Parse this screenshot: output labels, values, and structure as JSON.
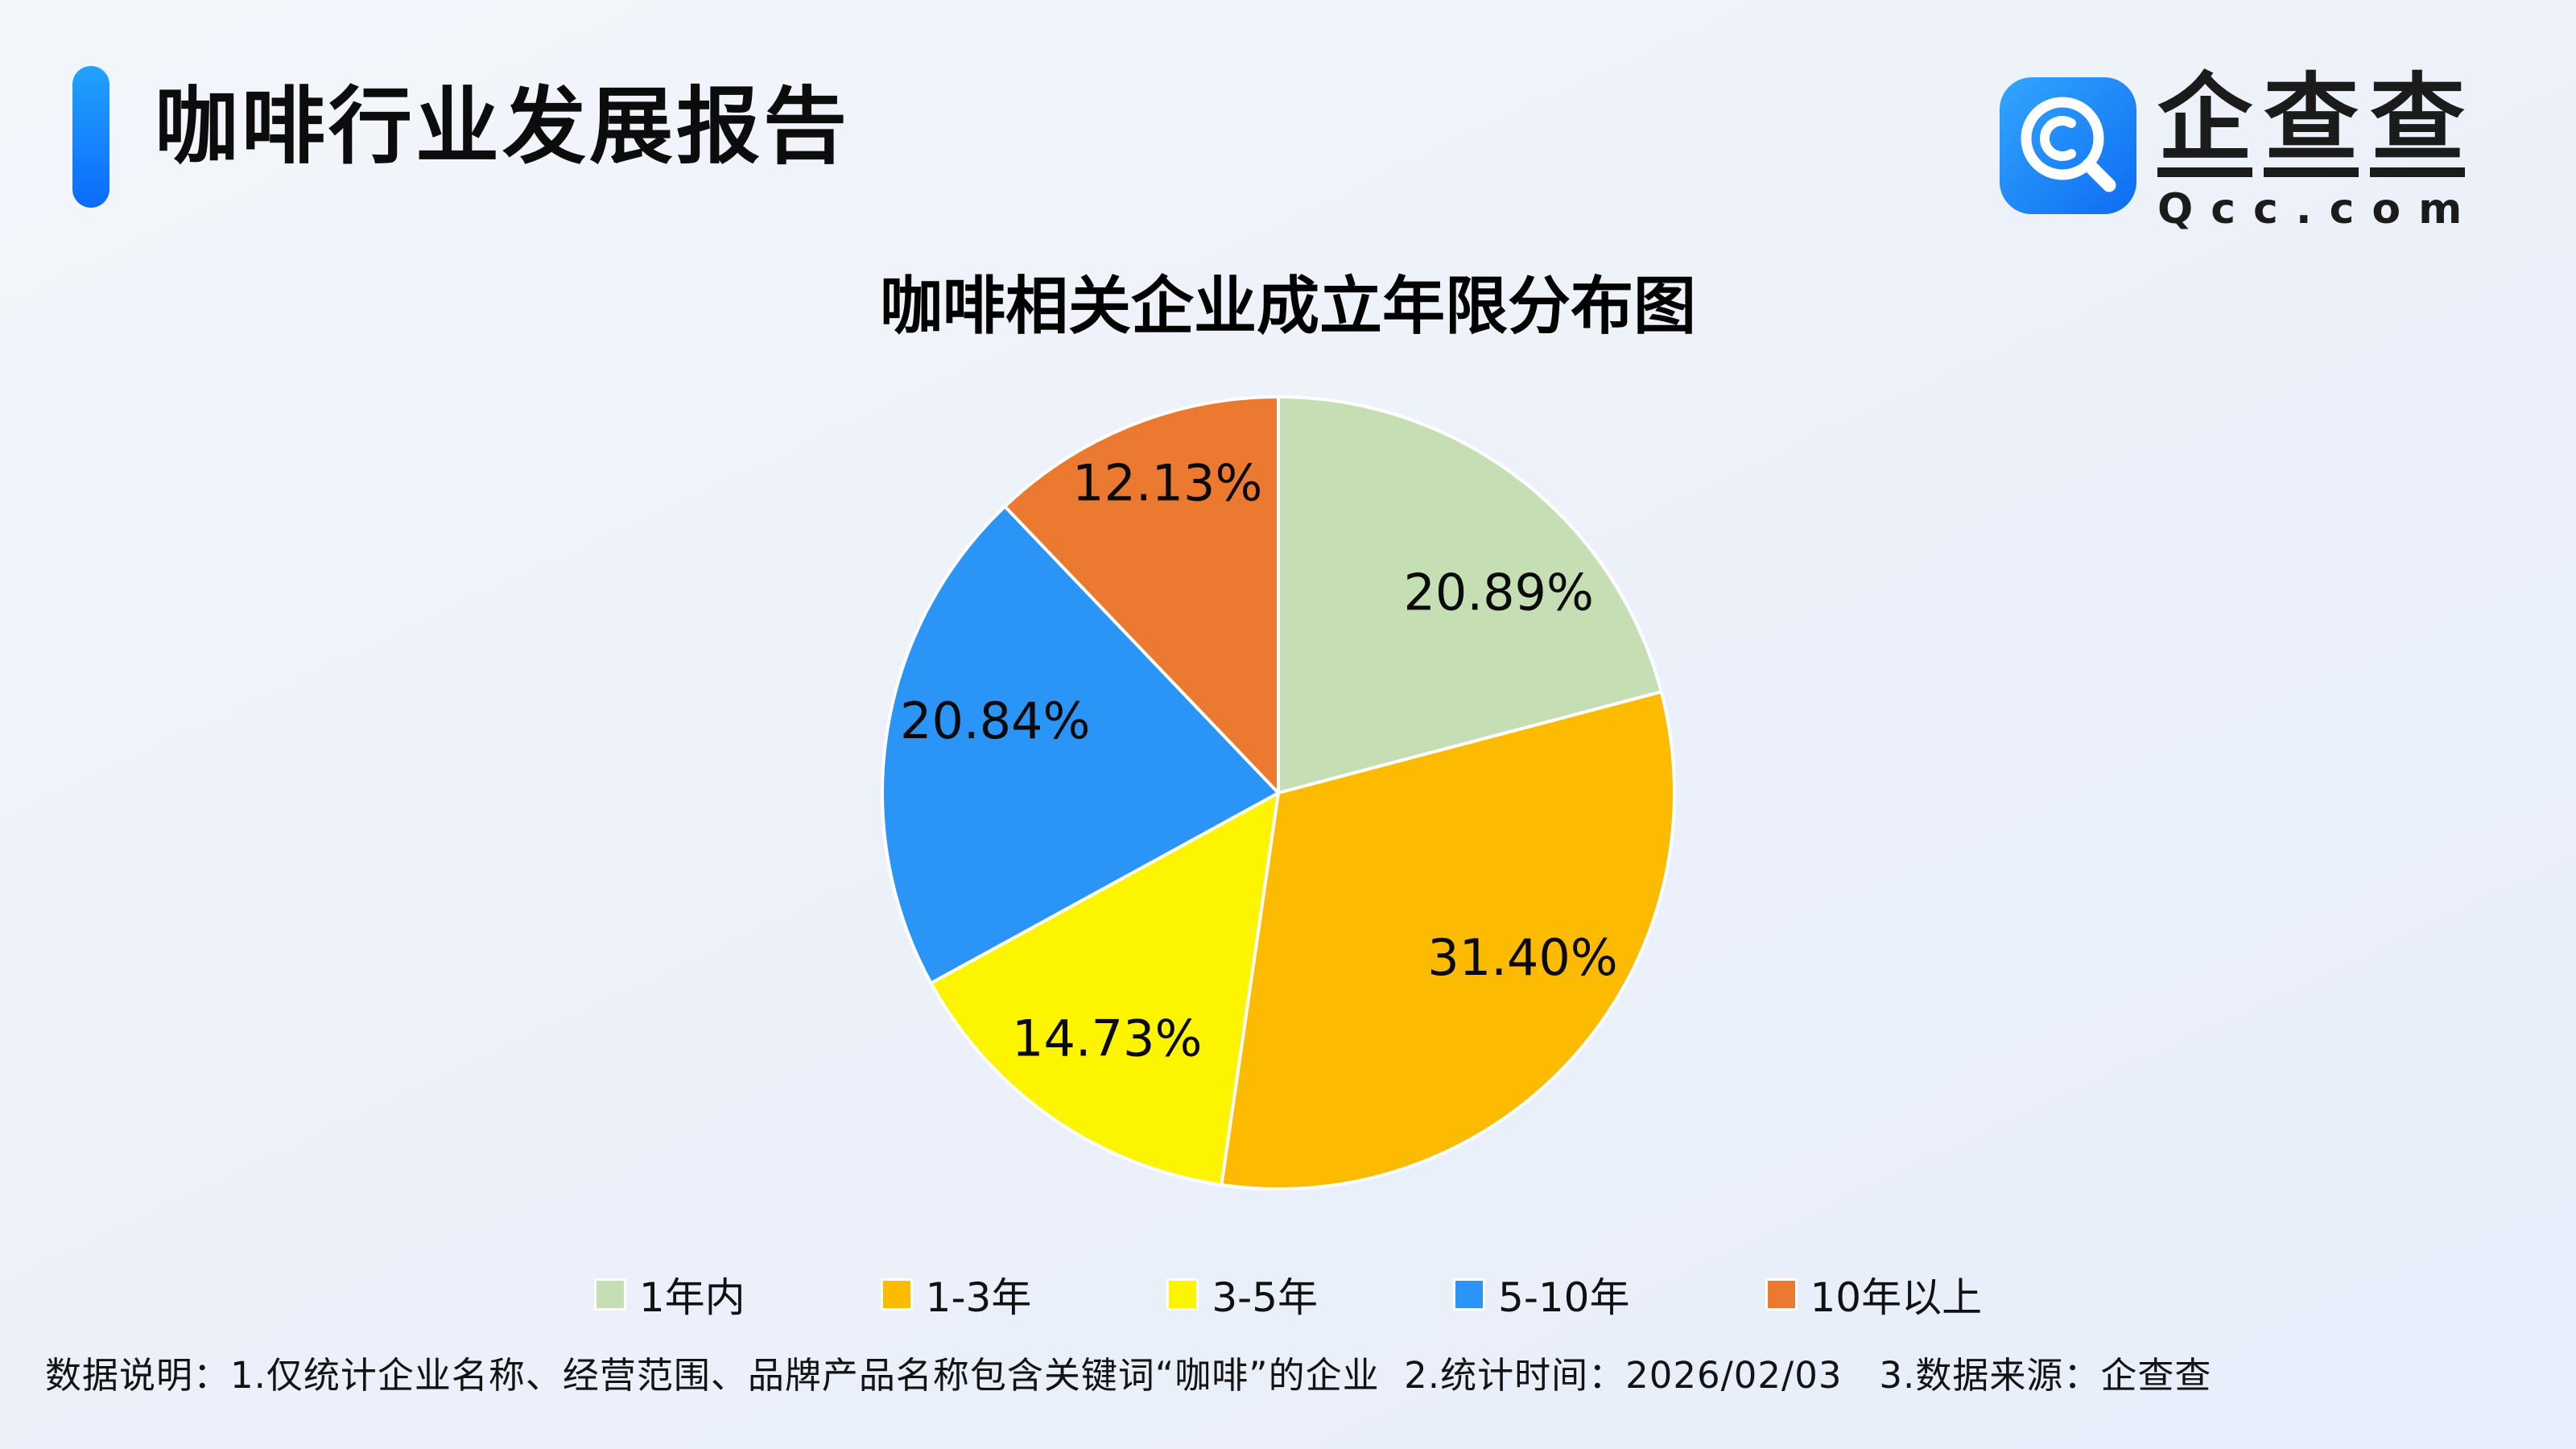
{
  "header": {
    "title": "咖啡行业发展报告",
    "accent_color_top": "#22a2fd",
    "accent_color_bottom": "#0b6bfa"
  },
  "logo": {
    "brand": "企查查",
    "domain": "Qcc.com",
    "icon": "qcc-magnifier-icon",
    "icon_gradient_start": "#33a6fe",
    "icon_gradient_end": "#0d6cf2"
  },
  "chart_data": {
    "type": "pie",
    "title": "咖啡相关企业成立年限分布图",
    "start_angle_deg": 0,
    "direction": "clockwise",
    "slice_border_color": "#ffffff",
    "label_color": "#0a0a0a",
    "legend_position": "bottom",
    "slices": [
      {
        "label": "1年内",
        "value": 20.89,
        "display": "20.89%",
        "color": "#c6deb4",
        "label_pos": {
          "angle_deg": 47.7,
          "radius_frac": 0.752
        }
      },
      {
        "label": "1-3年",
        "value": 31.4,
        "display": "31.40%",
        "color": "#fcba00",
        "label_pos": {
          "angle_deg": 124.0,
          "radius_frac": 0.744
        }
      },
      {
        "label": "3-5年",
        "value": 14.73,
        "display": "14.73%",
        "color": "#fdf400",
        "label_pos": {
          "angle_deg": 214.9,
          "radius_frac": 0.756
        }
      },
      {
        "label": "5-10年",
        "value": 20.84,
        "display": "20.84%",
        "color": "#2b94f7",
        "label_pos": {
          "angle_deg": 284.3,
          "radius_frac": 0.738
        }
      },
      {
        "label": "10年以上",
        "value": 12.13,
        "display": "12.13%",
        "color": "#eb7a30",
        "label_pos": {
          "angle_deg": 340.3,
          "radius_frac": 0.831
        }
      }
    ]
  },
  "footnote": {
    "text": "数据说明：1.仅统计企业名称、经营范围、品牌产品名称包含关键词“咖啡”的企业  2.统计时间：2026/02/03   3.数据来源：企查查"
  }
}
